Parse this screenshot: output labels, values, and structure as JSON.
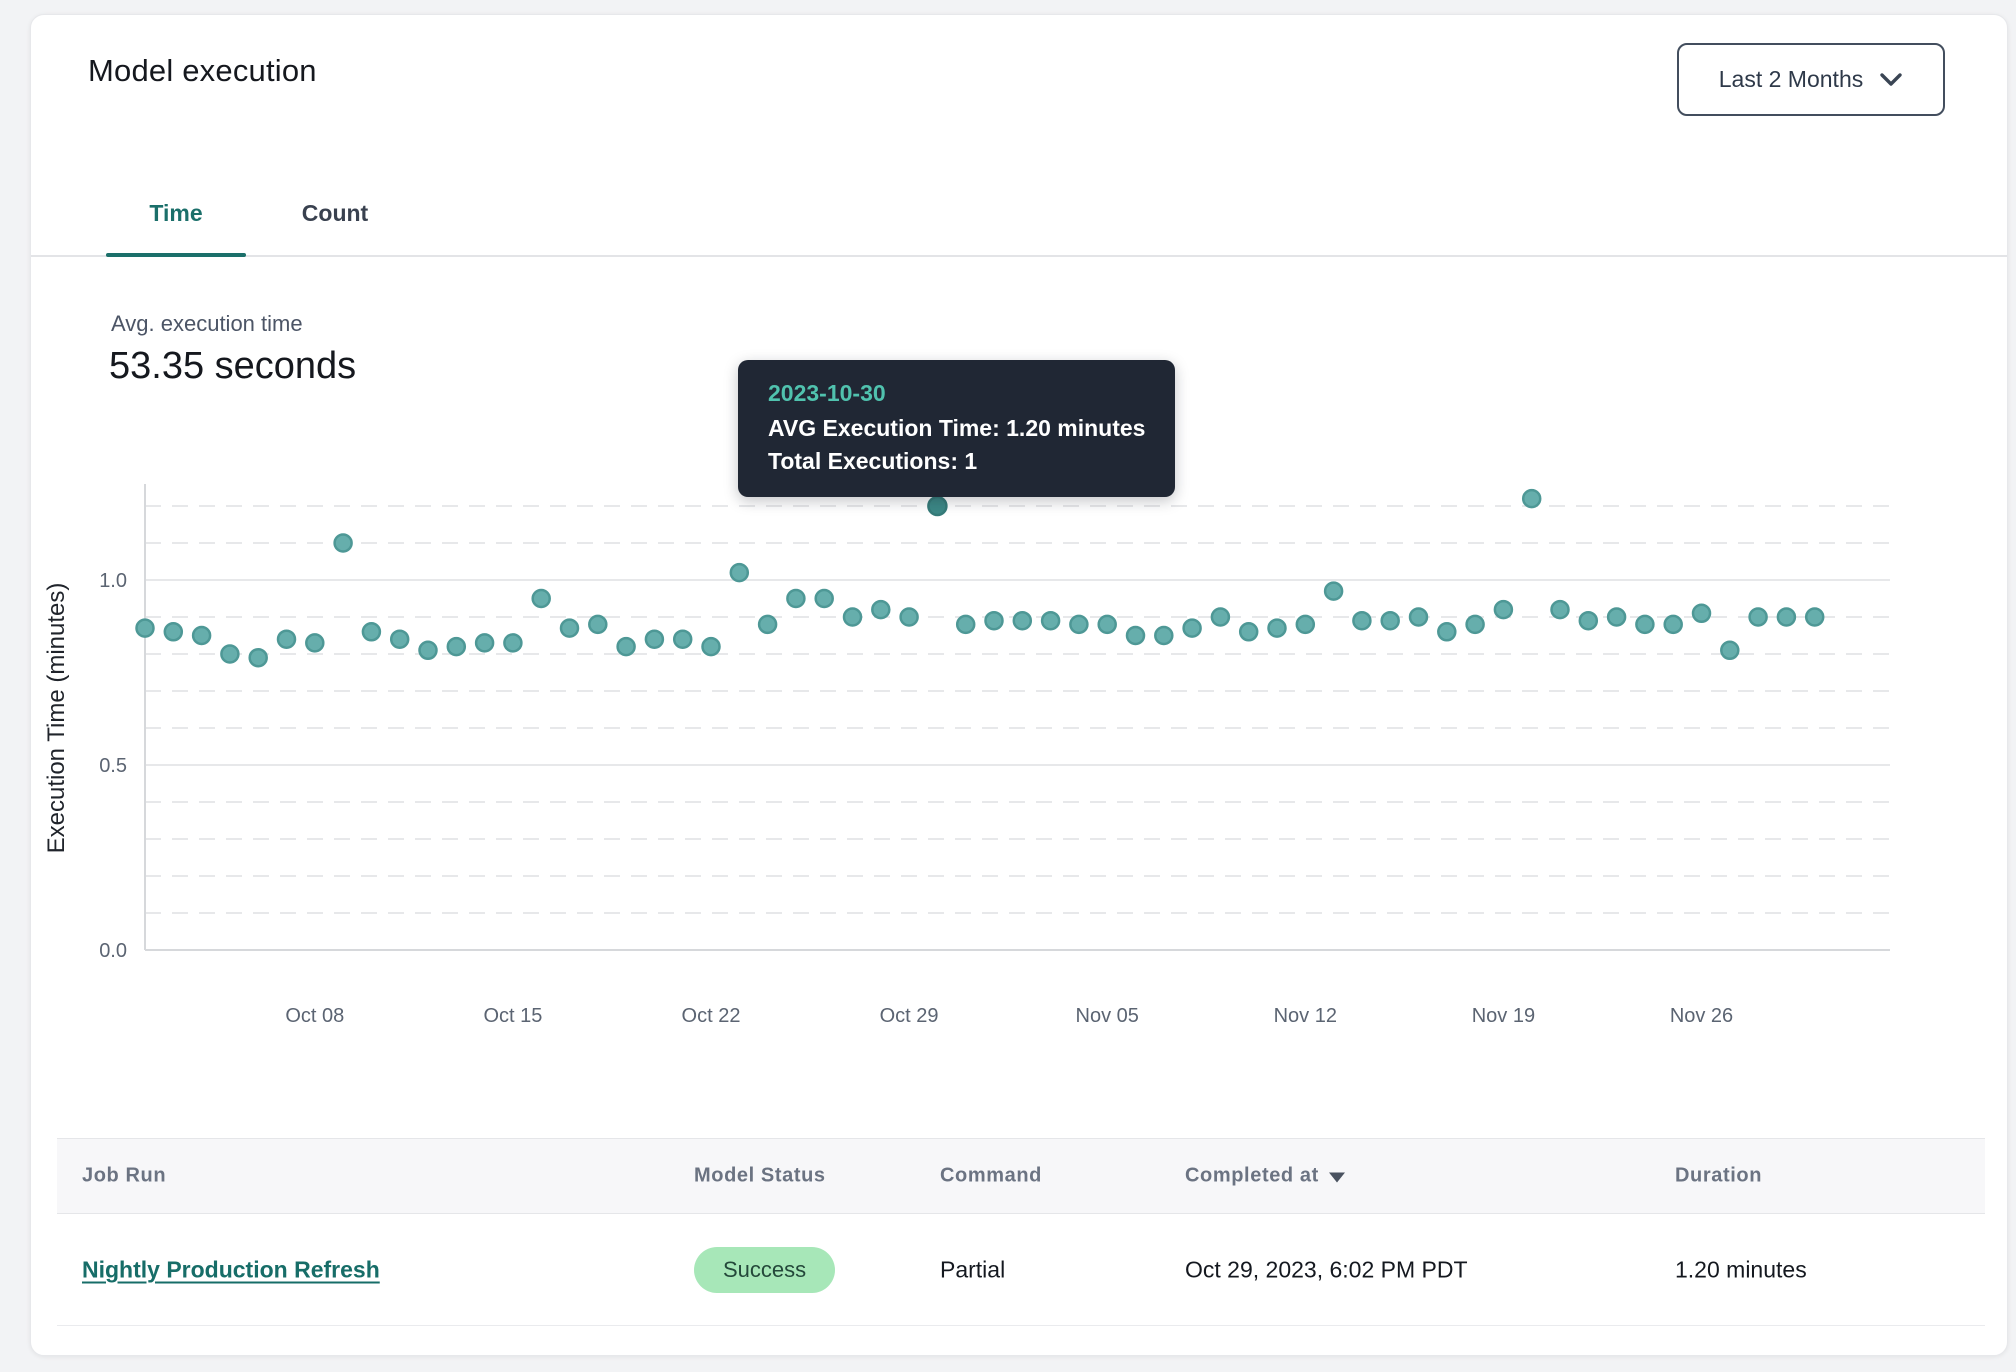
{
  "card": {
    "title": "Model execution",
    "range_selector": {
      "label": "Last 2 Months"
    },
    "tabs": [
      {
        "label": "Time",
        "active": true
      },
      {
        "label": "Count",
        "active": false
      }
    ],
    "summary": {
      "label": "Avg. execution time",
      "value": "53.35 seconds"
    },
    "tooltip": {
      "date": "2023-10-30",
      "line1": "AVG Execution Time: 1.20 minutes",
      "line2": "Total Executions: 1"
    }
  },
  "chart_data": {
    "type": "scatter",
    "title": "",
    "xlabel": "",
    "ylabel": "Execution Time (minutes)",
    "ylim": [
      0.0,
      1.26
    ],
    "grid": "horizontal, 0.1 steps, dashed (solid at 0.5 and 1.0)",
    "legend": "none",
    "dates": [
      "2023-10-02",
      "2023-10-03",
      "2023-10-04",
      "2023-10-05",
      "2023-10-06",
      "2023-10-07",
      "2023-10-08",
      "2023-10-09",
      "2023-10-10",
      "2023-10-11",
      "2023-10-12",
      "2023-10-13",
      "2023-10-14",
      "2023-10-15",
      "2023-10-16",
      "2023-10-17",
      "2023-10-18",
      "2023-10-19",
      "2023-10-20",
      "2023-10-21",
      "2023-10-22",
      "2023-10-23",
      "2023-10-24",
      "2023-10-25",
      "2023-10-26",
      "2023-10-27",
      "2023-10-28",
      "2023-10-29",
      "2023-10-30",
      "2023-10-31",
      "2023-11-01",
      "2023-11-02",
      "2023-11-03",
      "2023-11-04",
      "2023-11-05",
      "2023-11-06",
      "2023-11-07",
      "2023-11-08",
      "2023-11-09",
      "2023-11-10",
      "2023-11-11",
      "2023-11-12",
      "2023-11-13",
      "2023-11-14",
      "2023-11-15",
      "2023-11-16",
      "2023-11-17",
      "2023-11-18",
      "2023-11-19",
      "2023-11-20",
      "2023-11-21",
      "2023-11-22",
      "2023-11-23",
      "2023-11-24",
      "2023-11-25",
      "2023-11-26",
      "2023-11-27",
      "2023-11-28",
      "2023-11-29",
      "2023-11-30"
    ],
    "values": [
      0.87,
      0.86,
      0.85,
      0.8,
      0.79,
      0.84,
      0.83,
      1.1,
      0.86,
      0.84,
      0.81,
      0.82,
      0.83,
      0.83,
      0.95,
      0.87,
      0.88,
      0.82,
      0.84,
      0.84,
      0.82,
      1.02,
      0.88,
      0.95,
      0.95,
      0.9,
      0.92,
      0.9,
      1.2,
      0.88,
      0.89,
      0.89,
      0.89,
      0.88,
      0.88,
      0.85,
      0.85,
      0.87,
      0.9,
      0.86,
      0.87,
      0.88,
      0.97,
      0.89,
      0.89,
      0.9,
      0.86,
      0.88,
      0.92,
      1.22,
      0.92,
      0.89,
      0.9,
      0.88,
      0.88,
      0.91,
      0.81,
      0.9,
      0.9,
      0.9
    ],
    "highlight": {
      "index": 28,
      "date": "2023-10-30",
      "avg_execution_time_minutes": 1.2,
      "total_executions": 1
    },
    "yticks": [
      0.0,
      0.5,
      1.0
    ],
    "ytick_labels": [
      "0.0",
      "0.5",
      "1.0"
    ],
    "x_tick_labels": [
      {
        "index": 6,
        "label": "Oct 08"
      },
      {
        "index": 13,
        "label": "Oct 15"
      },
      {
        "index": 20,
        "label": "Oct 22"
      },
      {
        "index": 27,
        "label": "Oct 29"
      },
      {
        "index": 34,
        "label": "Nov 05"
      },
      {
        "index": 41,
        "label": "Nov 12"
      },
      {
        "index": 48,
        "label": "Nov 19"
      },
      {
        "index": 55,
        "label": "Nov 26"
      }
    ],
    "colors": {
      "point_fill": "#66aeac",
      "point_stroke": "#4e9896",
      "highlight_fill": "#3c8886",
      "highlight_stroke": "#357b79",
      "grid": "#e7e8ea",
      "spine": "#d6d8db",
      "tick_text": "#5b6472",
      "axis_label_text": "#20242b"
    }
  },
  "table": {
    "headers": [
      {
        "label": "Job Run"
      },
      {
        "label": "Model Status"
      },
      {
        "label": "Command"
      },
      {
        "label": "Completed at",
        "sorted": "desc"
      },
      {
        "label": "Duration"
      }
    ],
    "rows": [
      {
        "job_run": "Nightly Production Refresh",
        "model_status": "Success",
        "command": "Partial",
        "completed_at": "Oct 29, 2023, 6:02 PM PDT",
        "duration": "1.20 minutes"
      }
    ]
  },
  "colors": {
    "accent_teal": "#1b6f6a",
    "link_teal": "#176d68",
    "tooltip_bg": "#202734",
    "tooltip_date": "#50c2ae",
    "badge_green_bg": "#a7e7b8",
    "badge_green_text": "#24483a",
    "header_text": "#6b7382"
  }
}
